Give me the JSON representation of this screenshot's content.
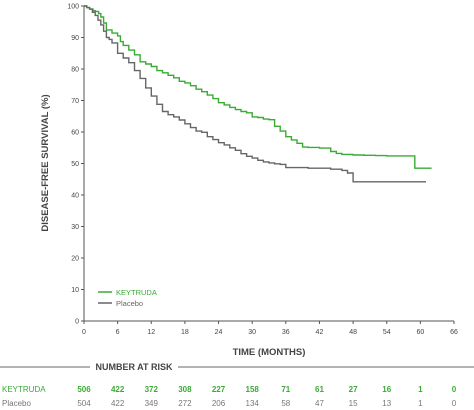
{
  "chart_data": {
    "type": "line",
    "step": true,
    "xlabel": "TIME (MONTHS)",
    "ylabel": "DISEASE-FREE SURVIVAL (%)",
    "xlim": [
      0,
      66
    ],
    "ylim": [
      0,
      100
    ],
    "xticks": [
      0,
      6,
      12,
      18,
      24,
      30,
      36,
      42,
      48,
      54,
      60,
      66
    ],
    "yticks": [
      0,
      10,
      20,
      30,
      40,
      50,
      60,
      70,
      80,
      90,
      100
    ],
    "grid": false,
    "legend_position": "lower-left",
    "colors": {
      "keytruda": "#3aaa35",
      "placebo": "#666666",
      "axis": "#555555",
      "text": "#444444"
    },
    "series": [
      {
        "name": "KEYTRUDA",
        "color": "#3aaa35",
        "points": [
          [
            0,
            100
          ],
          [
            0.5,
            99.5
          ],
          [
            1,
            99
          ],
          [
            1.6,
            98.5
          ],
          [
            2,
            98.3
          ],
          [
            2.6,
            97.6
          ],
          [
            3,
            96.5
          ],
          [
            3.5,
            94.6
          ],
          [
            4,
            92.4
          ],
          [
            5,
            91.4
          ],
          [
            6,
            90.5
          ],
          [
            6.5,
            88.7
          ],
          [
            7,
            87.5
          ],
          [
            8,
            86
          ],
          [
            9,
            84.5
          ],
          [
            10,
            82.3
          ],
          [
            11,
            81.6
          ],
          [
            12,
            80.8
          ],
          [
            13,
            79.5
          ],
          [
            14,
            78.8
          ],
          [
            15,
            78
          ],
          [
            16,
            77.2
          ],
          [
            17,
            76.1
          ],
          [
            18,
            75.6
          ],
          [
            19,
            74.7
          ],
          [
            20,
            73.6
          ],
          [
            21,
            72.8
          ],
          [
            22,
            71.7
          ],
          [
            23,
            70.6
          ],
          [
            24,
            69.3
          ],
          [
            25,
            68.6
          ],
          [
            26,
            67.8
          ],
          [
            27,
            67.1
          ],
          [
            28,
            66.5
          ],
          [
            29,
            66.1
          ],
          [
            30,
            64.8
          ],
          [
            31,
            64.6
          ],
          [
            32,
            64.1
          ],
          [
            33,
            63.9
          ],
          [
            34,
            61.8
          ],
          [
            35,
            60.3
          ],
          [
            36,
            58.5
          ],
          [
            37,
            57.5
          ],
          [
            38,
            56.4
          ],
          [
            39,
            55.2
          ],
          [
            40,
            55.1
          ],
          [
            42,
            54.9
          ],
          [
            44,
            53.8
          ],
          [
            45,
            53.2
          ],
          [
            46,
            52.9
          ],
          [
            48,
            52.7
          ],
          [
            50,
            52.6
          ],
          [
            52,
            52.5
          ],
          [
            54,
            52.4
          ],
          [
            56,
            52.4
          ],
          [
            58,
            52.4
          ],
          [
            59,
            48.5
          ],
          [
            60,
            48.5
          ],
          [
            62,
            48.5
          ]
        ]
      },
      {
        "name": "Placebo",
        "color": "#666666",
        "points": [
          [
            0,
            100
          ],
          [
            0.5,
            99.5
          ],
          [
            1,
            99
          ],
          [
            1.5,
            98
          ],
          [
            2,
            97
          ],
          [
            2.5,
            95.5
          ],
          [
            3,
            94
          ],
          [
            3.5,
            92
          ],
          [
            4,
            90
          ],
          [
            4.5,
            89.4
          ],
          [
            5,
            88.3
          ],
          [
            6,
            85
          ],
          [
            7,
            83.5
          ],
          [
            8,
            82
          ],
          [
            9,
            79.5
          ],
          [
            10,
            77
          ],
          [
            11,
            74
          ],
          [
            12,
            71.4
          ],
          [
            13,
            68.8
          ],
          [
            14,
            66.5
          ],
          [
            15,
            65.5
          ],
          [
            16,
            64.8
          ],
          [
            17,
            63.8
          ],
          [
            18,
            62.6
          ],
          [
            19,
            61.4
          ],
          [
            20,
            60.3
          ],
          [
            21,
            59.9
          ],
          [
            22,
            58.5
          ],
          [
            23,
            57.6
          ],
          [
            24,
            56.6
          ],
          [
            25,
            55.9
          ],
          [
            26,
            55
          ],
          [
            27,
            54.2
          ],
          [
            28,
            53.1
          ],
          [
            29,
            52.3
          ],
          [
            30,
            51.7
          ],
          [
            31,
            51
          ],
          [
            32,
            50.5
          ],
          [
            33,
            50.2
          ],
          [
            34,
            49.9
          ],
          [
            35,
            49.7
          ],
          [
            36,
            48.7
          ],
          [
            38,
            48.7
          ],
          [
            40,
            48.5
          ],
          [
            42,
            48.5
          ],
          [
            44,
            48.2
          ],
          [
            46,
            47.8
          ],
          [
            47,
            47
          ],
          [
            48,
            44.2
          ],
          [
            50,
            44.2
          ],
          [
            52,
            44.2
          ],
          [
            54,
            44.2
          ],
          [
            56,
            44.2
          ],
          [
            58,
            44.2
          ],
          [
            60,
            44.2
          ],
          [
            61,
            44.2
          ]
        ]
      }
    ]
  },
  "risk_table": {
    "title": "NUMBER AT RISK",
    "months": [
      0,
      6,
      12,
      18,
      24,
      30,
      36,
      42,
      48,
      54,
      60,
      66
    ],
    "rows": [
      {
        "label": "KEYTRUDA",
        "color": "#3aaa35",
        "values": [
          "506",
          "422",
          "372",
          "308",
          "227",
          "158",
          "71",
          "61",
          "27",
          "16",
          "1",
          "0"
        ]
      },
      {
        "label": "Placebo",
        "color": "#777777",
        "values": [
          "504",
          "422",
          "349",
          "272",
          "206",
          "134",
          "58",
          "47",
          "15",
          "13",
          "1",
          "0"
        ]
      }
    ]
  }
}
